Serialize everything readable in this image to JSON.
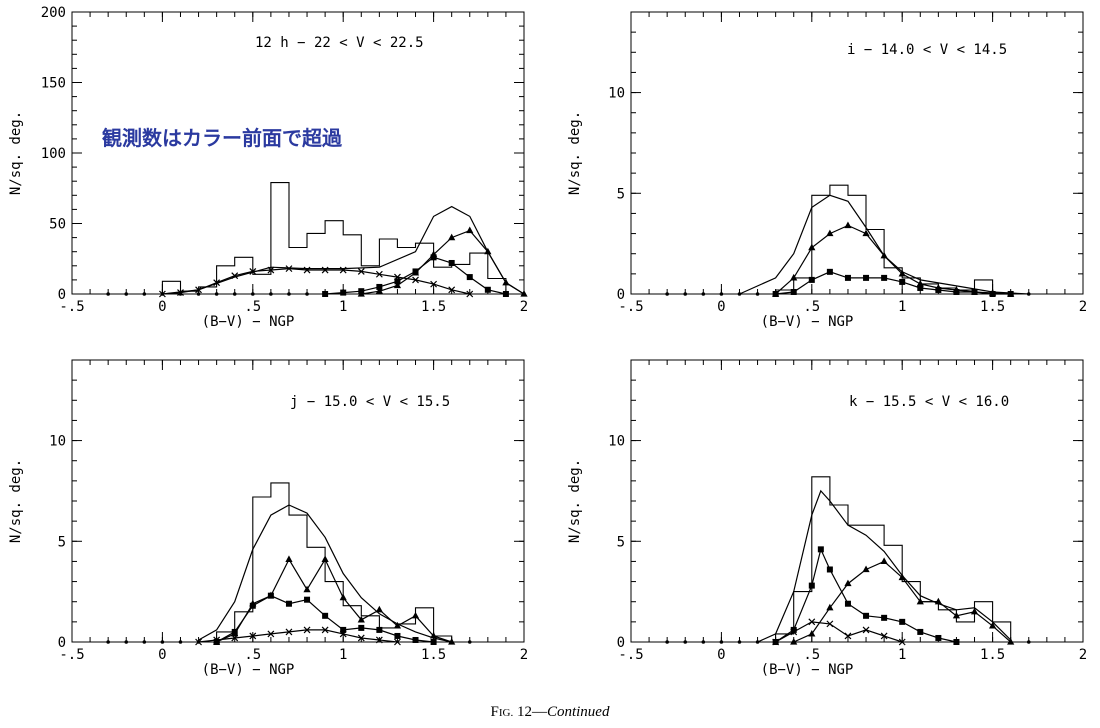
{
  "colors": {
    "ink": "#000000",
    "overlay": "#2b3aa0"
  },
  "overlay_text": "観測数はカラー前面で超過",
  "caption": {
    "prefix": "F",
    "smallcaps": "IG.",
    "number": " 12",
    "dash": "—",
    "continued": "Continued"
  },
  "chart_data": [
    {
      "type": "line",
      "panel_label": "12 h − 22 < V < 22.5",
      "xlabel": "(B−V) − NGP",
      "ylabel": "N/sq. deg.",
      "xlim": [
        -0.5,
        2
      ],
      "ylim": [
        0,
        200
      ],
      "x_ticks": [
        -0.5,
        0,
        0.5,
        1,
        1.5,
        2
      ],
      "x_tick_labels": [
        "-.5",
        "0",
        ".5",
        "1",
        "1.5",
        "2"
      ],
      "y_ticks": [
        0,
        50,
        100,
        150,
        200
      ],
      "y_tick_labels": [
        "0",
        "50",
        "100",
        "150",
        "200"
      ],
      "histogram": {
        "edges": [
          0.0,
          0.1,
          0.2,
          0.3,
          0.4,
          0.5,
          0.6,
          0.7,
          0.8,
          0.9,
          1.0,
          1.1,
          1.2,
          1.3,
          1.4,
          1.5,
          1.6,
          1.7,
          1.8,
          1.9
        ],
        "values": [
          9,
          2,
          5,
          20,
          26,
          14,
          79,
          33,
          43,
          52,
          42,
          20,
          39,
          33,
          36,
          19,
          21,
          29,
          11,
          0
        ]
      },
      "series": [
        {
          "marker": "none",
          "x": [
            0.0,
            0.2,
            0.4,
            0.6,
            0.8,
            1.0,
            1.2,
            1.4,
            1.5,
            1.6,
            1.7,
            1.8,
            1.9,
            2.0
          ],
          "y": [
            0,
            3,
            12,
            19,
            18,
            18,
            19,
            30,
            55,
            62,
            55,
            30,
            8,
            0
          ]
        },
        {
          "marker": "cross",
          "x": [
            0.0,
            0.1,
            0.2,
            0.3,
            0.4,
            0.5,
            0.6,
            0.7,
            0.8,
            0.9,
            1.0,
            1.1,
            1.2,
            1.3,
            1.4,
            1.5,
            1.6,
            1.7
          ],
          "y": [
            0,
            1,
            3,
            8,
            13,
            16,
            17,
            18,
            17,
            17,
            17,
            16,
            14,
            12,
            10,
            7,
            3,
            0
          ]
        },
        {
          "marker": "square",
          "x": [
            0.9,
            1.0,
            1.1,
            1.2,
            1.3,
            1.4,
            1.5,
            1.6,
            1.7,
            1.8,
            1.9
          ],
          "y": [
            0,
            1,
            2,
            5,
            9,
            16,
            26,
            22,
            12,
            3,
            0
          ]
        },
        {
          "marker": "triangle",
          "x": [
            1.1,
            1.2,
            1.3,
            1.4,
            1.5,
            1.6,
            1.7,
            1.8,
            1.9,
            2.0
          ],
          "y": [
            0,
            2,
            6,
            15,
            28,
            40,
            45,
            30,
            8,
            0
          ]
        },
        {
          "marker": "dot",
          "x": [
            -0.3,
            -0.2,
            -0.1,
            0.0,
            0.1,
            0.2,
            0.3,
            0.4,
            0.5,
            0.6,
            0.7,
            0.8,
            0.9
          ],
          "y": [
            0,
            0,
            0,
            0,
            0,
            0,
            0,
            0,
            0,
            0,
            0,
            0,
            0
          ]
        }
      ]
    },
    {
      "type": "line",
      "panel_label": "i − 14.0 < V < 14.5",
      "xlabel": "(B−V) − NGP",
      "ylabel": "N/sq. deg.",
      "xlim": [
        -0.5,
        2
      ],
      "ylim": [
        0,
        14
      ],
      "x_ticks": [
        -0.5,
        0,
        0.5,
        1,
        1.5,
        2
      ],
      "x_tick_labels": [
        "-.5",
        "0",
        ".5",
        "1",
        "1.5",
        "2"
      ],
      "y_ticks": [
        0,
        5,
        10
      ],
      "y_tick_labels": [
        "0",
        "5",
        "10"
      ],
      "histogram": {
        "edges": [
          0.3,
          0.4,
          0.5,
          0.6,
          0.7,
          0.8,
          0.9,
          1.0,
          1.1,
          1.2,
          1.3,
          1.4,
          1.5
        ],
        "values": [
          0.2,
          0.8,
          4.9,
          5.4,
          4.9,
          3.2,
          1.3,
          0.8,
          0.5,
          0.3,
          0.2,
          0.7
        ]
      },
      "series": [
        {
          "marker": "none",
          "x": [
            0.1,
            0.3,
            0.4,
            0.5,
            0.6,
            0.7,
            0.8,
            0.9,
            1.0,
            1.1,
            1.3,
            1.5,
            1.7
          ],
          "y": [
            0,
            0.8,
            2.0,
            4.3,
            4.9,
            4.6,
            3.3,
            1.9,
            1.1,
            0.7,
            0.4,
            0.1,
            0
          ]
        },
        {
          "marker": "triangle",
          "x": [
            0.3,
            0.4,
            0.5,
            0.6,
            0.7,
            0.8,
            0.9,
            1.0,
            1.1,
            1.2,
            1.3,
            1.4,
            1.5,
            1.6
          ],
          "y": [
            0,
            0.8,
            2.3,
            3.0,
            3.4,
            3.0,
            1.9,
            1.0,
            0.5,
            0.3,
            0.2,
            0.1,
            0.05,
            0
          ]
        },
        {
          "marker": "square",
          "x": [
            0.3,
            0.4,
            0.5,
            0.6,
            0.7,
            0.8,
            0.9,
            1.0,
            1.1,
            1.2,
            1.3,
            1.4,
            1.5,
            1.6
          ],
          "y": [
            0,
            0.1,
            0.7,
            1.1,
            0.8,
            0.8,
            0.8,
            0.6,
            0.3,
            0.2,
            0.1,
            0.1,
            0,
            0
          ]
        },
        {
          "marker": "dot",
          "x": [
            -0.3,
            -0.2,
            -0.1,
            0.0,
            0.1,
            0.2,
            0.3,
            1.6,
            1.7
          ],
          "y": [
            0,
            0,
            0,
            0,
            0,
            0,
            0,
            0,
            0
          ]
        }
      ]
    },
    {
      "type": "line",
      "panel_label": "j − 15.0 < V < 15.5",
      "xlabel": "(B−V) − NGP",
      "ylabel": "N/sq. deg.",
      "xlim": [
        -0.5,
        2
      ],
      "ylim": [
        0,
        14
      ],
      "x_ticks": [
        -0.5,
        0,
        0.5,
        1,
        1.5,
        2
      ],
      "x_tick_labels": [
        "-.5",
        "0",
        ".5",
        "1",
        "1.5",
        "2"
      ],
      "y_ticks": [
        0,
        5,
        10
      ],
      "y_tick_labels": [
        "0",
        "5",
        "10"
      ],
      "histogram": {
        "edges": [
          0.3,
          0.4,
          0.5,
          0.6,
          0.7,
          0.8,
          0.9,
          1.0,
          1.1,
          1.2,
          1.3,
          1.4,
          1.5,
          1.6
        ],
        "values": [
          0.5,
          1.5,
          7.2,
          7.9,
          6.3,
          4.7,
          3.0,
          1.8,
          1.3,
          0.7,
          0.9,
          1.7,
          0.3
        ]
      },
      "series": [
        {
          "marker": "none",
          "x": [
            0.2,
            0.3,
            0.4,
            0.5,
            0.6,
            0.7,
            0.8,
            0.9,
            1.0,
            1.1,
            1.2,
            1.3,
            1.4,
            1.5,
            1.6
          ],
          "y": [
            0.1,
            0.6,
            2.0,
            4.6,
            6.3,
            6.8,
            6.4,
            5.2,
            3.4,
            2.2,
            1.4,
            0.9,
            0.5,
            0.2,
            0
          ]
        },
        {
          "marker": "triangle",
          "x": [
            0.3,
            0.4,
            0.5,
            0.6,
            0.7,
            0.8,
            0.9,
            1.0,
            1.1,
            1.2,
            1.3,
            1.4,
            1.5,
            1.6
          ],
          "y": [
            0,
            0.4,
            1.9,
            2.3,
            4.1,
            2.6,
            4.1,
            2.2,
            1.1,
            1.6,
            0.8,
            1.3,
            0.3,
            0
          ]
        },
        {
          "marker": "square",
          "x": [
            0.3,
            0.4,
            0.5,
            0.6,
            0.7,
            0.8,
            0.9,
            1.0,
            1.1,
            1.2,
            1.3,
            1.4,
            1.5
          ],
          "y": [
            0,
            0.5,
            1.8,
            2.3,
            1.9,
            2.1,
            1.3,
            0.6,
            0.7,
            0.6,
            0.3,
            0.1,
            0
          ]
        },
        {
          "marker": "cross",
          "x": [
            0.2,
            0.3,
            0.4,
            0.5,
            0.6,
            0.7,
            0.8,
            0.9,
            1.0,
            1.1,
            1.2,
            1.3
          ],
          "y": [
            0,
            0.1,
            0.2,
            0.3,
            0.4,
            0.5,
            0.6,
            0.6,
            0.4,
            0.2,
            0.1,
            0
          ]
        },
        {
          "marker": "dot",
          "x": [
            -0.3,
            -0.2,
            -0.1,
            0.0,
            0.1,
            0.2,
            1.7
          ],
          "y": [
            0,
            0,
            0,
            0,
            0,
            0,
            0
          ]
        }
      ]
    },
    {
      "type": "line",
      "panel_label": "k − 15.5 < V < 16.0",
      "xlabel": "(B−V) − NGP",
      "ylabel": "N/sq. deg.",
      "xlim": [
        -0.5,
        2
      ],
      "ylim": [
        0,
        14
      ],
      "x_ticks": [
        -0.5,
        0,
        0.5,
        1,
        1.5,
        2
      ],
      "x_tick_labels": [
        "-.5",
        "0",
        ".5",
        "1",
        "1.5",
        "2"
      ],
      "y_ticks": [
        0,
        5,
        10
      ],
      "y_tick_labels": [
        "0",
        "5",
        "10"
      ],
      "histogram": {
        "edges": [
          0.3,
          0.4,
          0.5,
          0.6,
          0.7,
          0.8,
          0.9,
          1.0,
          1.1,
          1.2,
          1.3,
          1.4,
          1.5,
          1.6
        ],
        "values": [
          0.4,
          2.5,
          8.2,
          6.8,
          5.8,
          5.8,
          4.8,
          3.0,
          2.0,
          1.6,
          1.0,
          2.0,
          1.0
        ]
      },
      "series": [
        {
          "marker": "none",
          "x": [
            0.2,
            0.3,
            0.4,
            0.5,
            0.55,
            0.6,
            0.7,
            0.8,
            0.9,
            1.0,
            1.1,
            1.2,
            1.3,
            1.4,
            1.5,
            1.6
          ],
          "y": [
            0,
            0.4,
            2.5,
            6.3,
            7.5,
            7.0,
            5.8,
            5.3,
            4.5,
            3.3,
            2.3,
            1.9,
            1.6,
            1.7,
            1.0,
            0.1
          ]
        },
        {
          "marker": "square",
          "x": [
            0.3,
            0.4,
            0.5,
            0.55,
            0.6,
            0.7,
            0.8,
            0.9,
            1.0,
            1.1,
            1.2,
            1.3
          ],
          "y": [
            0,
            0.6,
            2.8,
            4.6,
            3.6,
            1.9,
            1.3,
            1.2,
            1.0,
            0.5,
            0.2,
            0
          ]
        },
        {
          "marker": "triangle",
          "x": [
            0.4,
            0.5,
            0.6,
            0.7,
            0.8,
            0.9,
            1.0,
            1.1,
            1.2,
            1.3,
            1.4,
            1.5,
            1.6
          ],
          "y": [
            0,
            0.4,
            1.7,
            2.9,
            3.6,
            4.0,
            3.2,
            2.0,
            2.0,
            1.3,
            1.5,
            0.8,
            0
          ]
        },
        {
          "marker": "cross",
          "x": [
            0.3,
            0.4,
            0.5,
            0.6,
            0.7,
            0.8,
            0.9,
            1.0
          ],
          "y": [
            0,
            0.5,
            1.0,
            0.9,
            0.3,
            0.6,
            0.3,
            0
          ]
        },
        {
          "marker": "dot",
          "x": [
            -0.3,
            -0.2,
            -0.1,
            0.0,
            0.1,
            0.2,
            1.7
          ],
          "y": [
            0,
            0,
            0,
            0,
            0,
            0,
            0
          ]
        }
      ]
    }
  ]
}
